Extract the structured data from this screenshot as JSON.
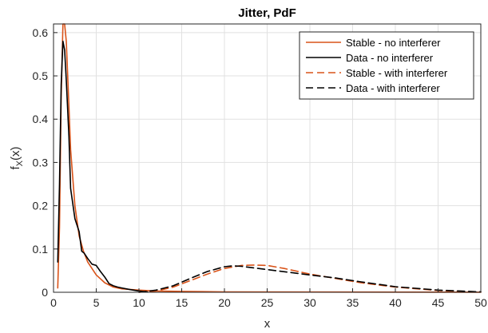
{
  "chart_data": {
    "type": "line",
    "title": "Jitter, PdF",
    "xlabel": "x",
    "ylabel": "f",
    "ylabel_sub": "X",
    "ylabel_arg": "(x)",
    "xlim": [
      0,
      50
    ],
    "ylim": [
      0,
      0.62
    ],
    "grid": true,
    "legend_position": "top-right",
    "xticks": [
      0,
      5,
      10,
      15,
      20,
      25,
      30,
      35,
      40,
      45,
      50
    ],
    "yticks": [
      0,
      0.1,
      0.2,
      0.3,
      0.4,
      0.5,
      0.6
    ],
    "series": [
      {
        "name": "Stable - no interferer",
        "color": "#D95319",
        "dash": "solid",
        "x": [
          0.5,
          0.7,
          0.9,
          1.1,
          1.3,
          1.5,
          1.8,
          2.0,
          2.5,
          3.0,
          3.5,
          4.0,
          5.0,
          6.0,
          7.0,
          8.0,
          10.0,
          12.0,
          15.0,
          20.0,
          30.0,
          40.0,
          50.0
        ],
        "y": [
          0.01,
          0.15,
          0.45,
          0.62,
          0.62,
          0.58,
          0.43,
          0.33,
          0.2,
          0.13,
          0.095,
          0.07,
          0.04,
          0.022,
          0.012,
          0.008,
          0.005,
          0.003,
          0.002,
          0.001,
          0.0005,
          0.0003,
          0.0002
        ]
      },
      {
        "name": "Data - no interferer",
        "color": "#000000",
        "dash": "solid",
        "x": [
          0.5,
          0.7,
          0.9,
          1.1,
          1.3,
          1.5,
          1.8,
          2.0,
          2.5,
          3.0,
          3.3,
          3.6,
          4.0,
          4.5,
          5.0,
          5.5,
          6.0,
          6.5,
          7.0,
          7.5,
          8.0,
          9.0,
          10.0,
          11.0
        ],
        "y": [
          0.07,
          0.25,
          0.48,
          0.58,
          0.56,
          0.49,
          0.36,
          0.24,
          0.17,
          0.14,
          0.095,
          0.09,
          0.078,
          0.065,
          0.062,
          0.048,
          0.035,
          0.02,
          0.015,
          0.012,
          0.01,
          0.006,
          0.003,
          0.001
        ]
      },
      {
        "name": "Stable - with interferer",
        "color": "#D95319",
        "dash": "dashed",
        "x": [
          10,
          12,
          14,
          16,
          18,
          20,
          22,
          23.5,
          25,
          27,
          30,
          33,
          36,
          40,
          45,
          50
        ],
        "y": [
          0.0,
          0.003,
          0.012,
          0.027,
          0.042,
          0.055,
          0.062,
          0.063,
          0.062,
          0.055,
          0.042,
          0.032,
          0.022,
          0.012,
          0.004,
          0.001
        ]
      },
      {
        "name": "Data - with interferer",
        "color": "#000000",
        "dash": "dashed",
        "x": [
          10,
          12,
          14,
          16,
          18,
          20,
          21,
          22,
          24,
          26,
          28,
          30,
          33,
          36,
          40,
          45,
          50
        ],
        "y": [
          0.0,
          0.005,
          0.015,
          0.032,
          0.048,
          0.059,
          0.061,
          0.06,
          0.055,
          0.05,
          0.045,
          0.04,
          0.033,
          0.024,
          0.013,
          0.005,
          0.001
        ]
      }
    ]
  }
}
